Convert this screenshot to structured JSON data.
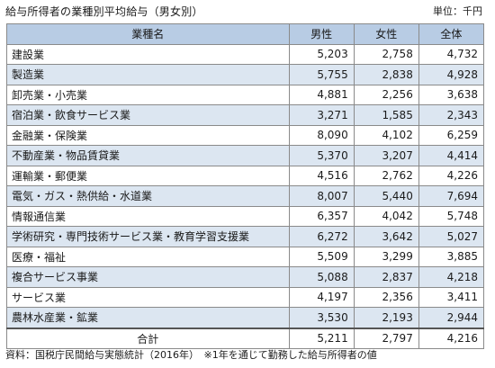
{
  "title": "給与所得者の業種別平均給与（男女別）",
  "unit": "単位：千円",
  "columns": [
    "業種名",
    "男性",
    "女性",
    "全体"
  ],
  "rows": [
    {
      "name": "建設業",
      "male": "5,203",
      "female": "2,758",
      "total": "4,732"
    },
    {
      "name": "製造業",
      "male": "5,755",
      "female": "2,838",
      "total": "4,928"
    },
    {
      "name": "卸売業・小売業",
      "male": "4,881",
      "female": "2,256",
      "total": "3,638"
    },
    {
      "name": "宿泊業・飲食サービス業",
      "male": "3,271",
      "female": "1,585",
      "total": "2,343"
    },
    {
      "name": "金融業・保険業",
      "male": "8,090",
      "female": "4,102",
      "total": "6,259"
    },
    {
      "name": "不動産業・物品賃貸業",
      "male": "5,370",
      "female": "3,207",
      "total": "4,414"
    },
    {
      "name": "運輸業・郵便業",
      "male": "4,516",
      "female": "2,762",
      "total": "4,226"
    },
    {
      "name": "電気・ガス・熱供給・水道業",
      "male": "8,007",
      "female": "5,440",
      "total": "7,694"
    },
    {
      "name": "情報通信業",
      "male": "6,357",
      "female": "4,042",
      "total": "5,748"
    },
    {
      "name": "学術研究・専門技術サービス業・教育学習支援業",
      "male": "6,272",
      "female": "3,642",
      "total": "5,027"
    },
    {
      "name": "医療・福祉",
      "male": "5,509",
      "female": "3,299",
      "total": "3,885"
    },
    {
      "name": "複合サービス事業",
      "male": "5,088",
      "female": "2,837",
      "total": "4,218"
    },
    {
      "name": "サービス業",
      "male": "4,197",
      "female": "2,356",
      "total": "3,411"
    },
    {
      "name": "農林水産業・鉱業",
      "male": "3,530",
      "female": "2,193",
      "total": "2,944"
    }
  ],
  "total_row": {
    "name": "合計",
    "male": "5,211",
    "female": "2,797",
    "total": "4,216"
  },
  "source": "資料：国税庁民間給与実態統計（2016年）　※1年を通じて勤務した給与所得者の値"
}
